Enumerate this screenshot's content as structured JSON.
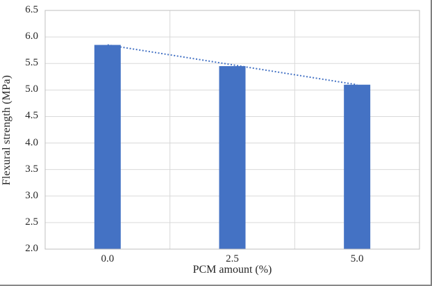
{
  "chart_data": {
    "type": "bar",
    "title": "",
    "categories": [
      "0.0",
      "2.5",
      "5.0"
    ],
    "values": [
      5.85,
      5.45,
      5.1
    ],
    "series_name": "Flexural strength",
    "xlabel": "PCM amount (%)",
    "ylabel": "Flexural strength (MPa)",
    "ylim": [
      2.0,
      6.5
    ],
    "ytick_step": 0.5,
    "ytick_labels": [
      "2.0",
      "2.5",
      "3.0",
      "3.5",
      "4.0",
      "4.5",
      "5.0",
      "5.5",
      "6.0",
      "6.5"
    ],
    "grid": true,
    "legend": "none",
    "trendline": {
      "style": "dotted",
      "points": [
        [
          0,
          5.85
        ],
        [
          2,
          5.1
        ]
      ],
      "color": "#4472C4"
    },
    "bar_color": "#4472C4",
    "gridline_color": "#D9D9D9",
    "axis_color": "#BFBFBF",
    "text_color": "#262626",
    "background_color": "#FFFFFF",
    "frame_color": "#7F7F7F"
  }
}
